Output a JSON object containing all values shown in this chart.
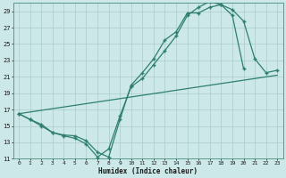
{
  "xlabel": "Humidex (Indice chaleur)",
  "bg_color": "#cce8e8",
  "grid_color": "#aacccc",
  "line_color": "#2e7f6e",
  "xlim": [
    -0.5,
    23.5
  ],
  "ylim": [
    11,
    30
  ],
  "xticks": [
    0,
    1,
    2,
    3,
    4,
    5,
    6,
    7,
    8,
    9,
    10,
    11,
    12,
    13,
    14,
    15,
    16,
    17,
    18,
    19,
    20,
    21,
    22,
    23
  ],
  "yticks": [
    11,
    13,
    15,
    17,
    19,
    21,
    23,
    25,
    27,
    29
  ],
  "line1_x": [
    0,
    1,
    2,
    3,
    4,
    5,
    6,
    7,
    8,
    9,
    10,
    11,
    12,
    13,
    14,
    15,
    16,
    17,
    18,
    19,
    20,
    21,
    22,
    23
  ],
  "line1_y": [
    16.5,
    15.8,
    15.0,
    14.2,
    13.8,
    13.5,
    12.8,
    11.2,
    12.2,
    16.2,
    19.8,
    20.8,
    22.5,
    24.2,
    26.0,
    28.5,
    29.5,
    30.2,
    29.8,
    28.5,
    22.0,
    null,
    null,
    null
  ],
  "line2_x": [
    0,
    1,
    2,
    3,
    4,
    5,
    6,
    7,
    8,
    9,
    10,
    11,
    12,
    13,
    14,
    15,
    16,
    17,
    18,
    19,
    20,
    21,
    22,
    23
  ],
  "line2_y": [
    16.5,
    15.8,
    15.2,
    14.2,
    13.9,
    13.8,
    13.2,
    11.8,
    11.2,
    15.8,
    20.0,
    21.5,
    23.2,
    25.5,
    26.5,
    28.8,
    28.8,
    29.5,
    29.8,
    29.2,
    27.8,
    23.2,
    21.5,
    21.8
  ],
  "line3_x": [
    0,
    23
  ],
  "line3_y": [
    16.5,
    21.2
  ]
}
